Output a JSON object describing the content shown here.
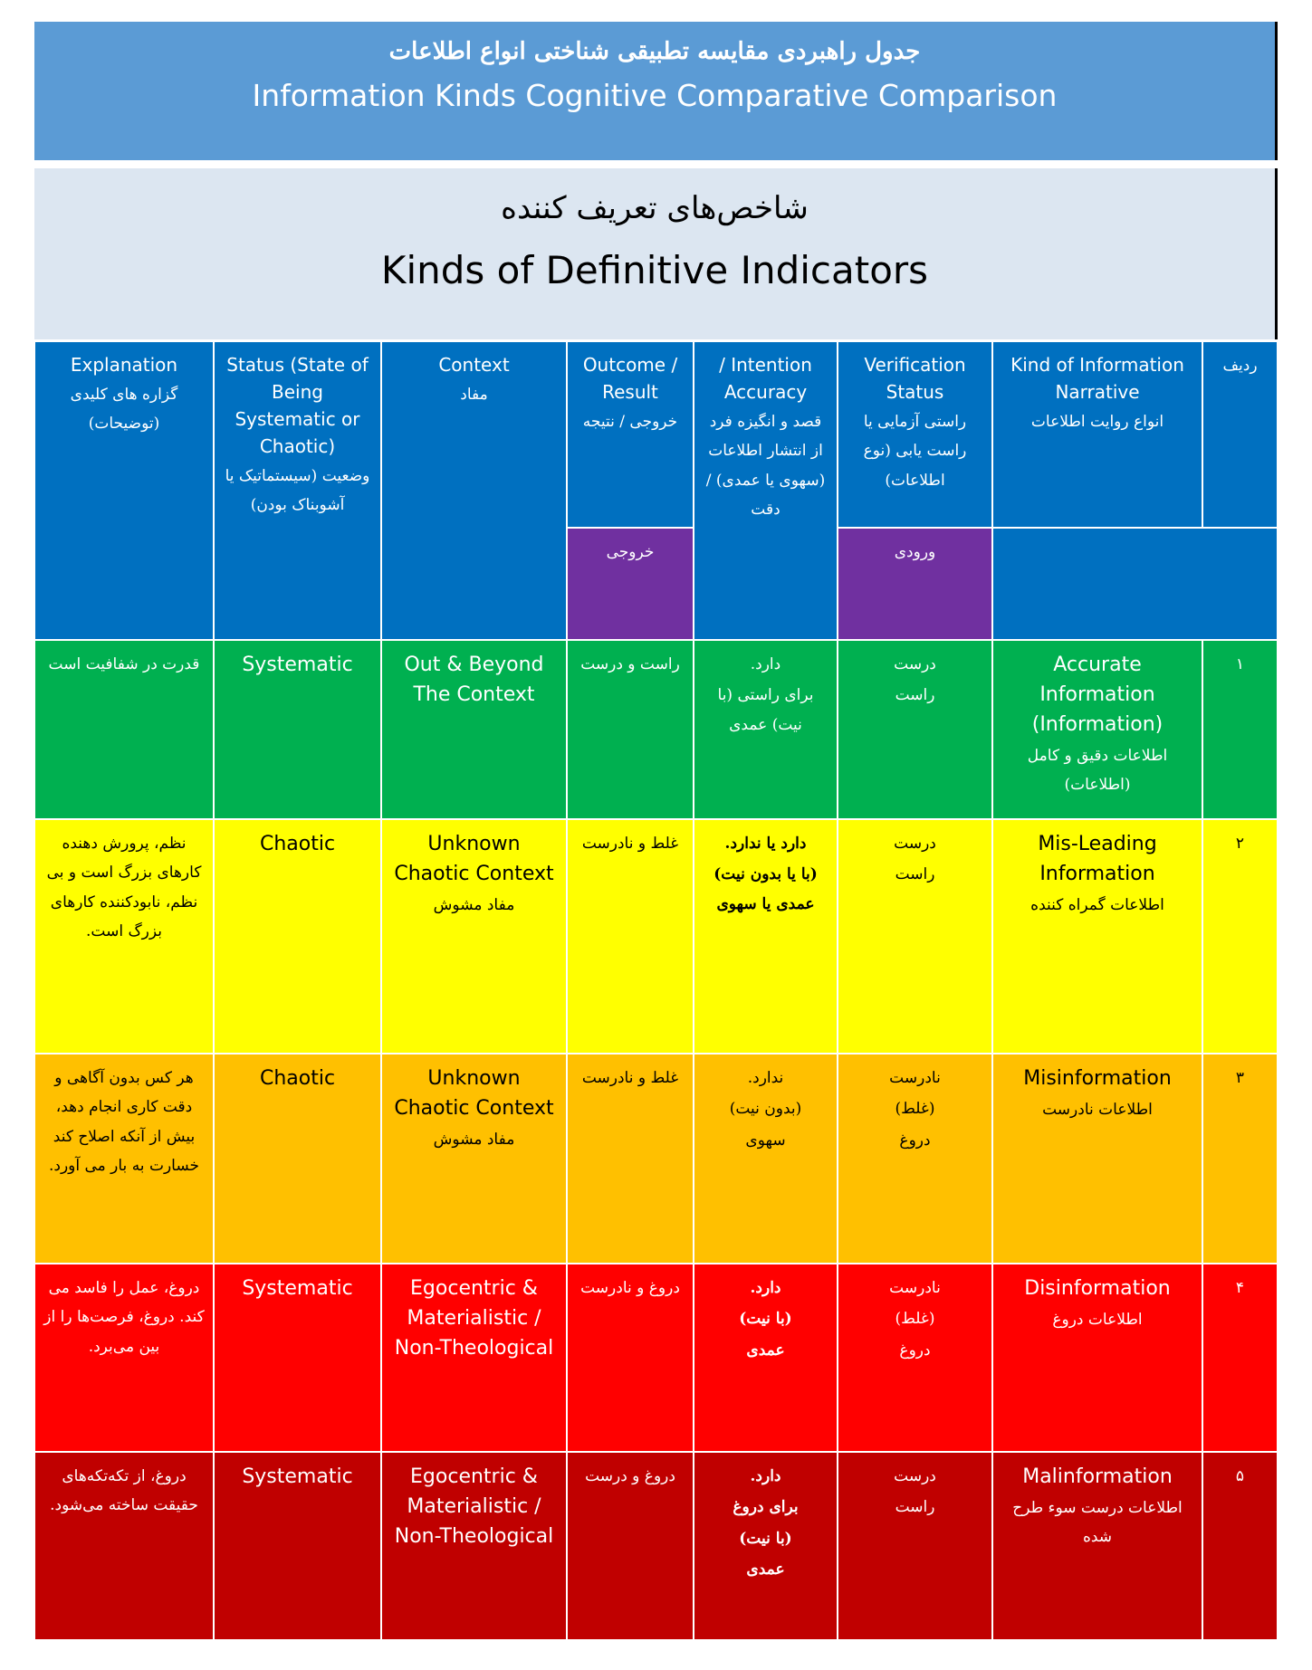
{
  "header": {
    "title_fa": "جدول راهبردی مقایسه تطبیقی شناختی انواع اطلاعات",
    "title_en": "Information Kinds Cognitive Comparative Comparison"
  },
  "section": {
    "title_fa": "شاخص‌های تعریف کننده",
    "title_en": "Kinds of Definitive Indicators"
  },
  "table": {
    "columns": [
      [
        "ردیف"
      ],
      [
        "Kind of Information Narrative",
        "انواع روایت اطلاعات"
      ],
      [
        "Verification Status",
        "راستی آزمایی یا راست یابی (نوع اطلاعات)"
      ],
      [
        "/ Intention Accuracy",
        "قصد و انگیزه فرد از انتشار اطلاعات (سهوی یا عمدی) / دقت"
      ],
      [
        "Outcome / Result",
        "خروجی / نتیجه"
      ],
      [
        "Context",
        "مفاد"
      ],
      [
        "Status (State of Being Systematic or Chaotic)",
        "وضعیت (سیستماتیک یا آشوبناک بودن)"
      ],
      [
        "Explanation",
        "گزاره های کلیدی (توضیحات)"
      ]
    ],
    "subheader": {
      "verification": "ورودی",
      "outcome": "خروجی"
    },
    "rows": [
      {
        "color": "#00b050",
        "text_color": "#ffffff",
        "emphasis": false,
        "cells": [
          [
            "۱"
          ],
          [
            "Accurate Information (Information)",
            "اطلاعات دقیق و کامل (اطلاعات)"
          ],
          [
            "درست",
            "راست"
          ],
          [
            "دارد.",
            "برای راستی (با نیت) عمدی"
          ],
          [
            "راست و درست"
          ],
          [
            "Out & Beyond The Context"
          ],
          [
            "Systematic"
          ],
          [
            "قدرت در شفافیت است"
          ]
        ]
      },
      {
        "color": "#ffff00",
        "text_color": "#000000",
        "emphasis": true,
        "cells": [
          [
            "۲"
          ],
          [
            "Mis-Leading Information",
            "اطلاعات گمراه کننده"
          ],
          [
            "درست",
            "راست"
          ],
          [
            "دارد یا ندارد.",
            "(با یا بدون نیت) عمدی یا سهوی"
          ],
          [
            "غلط و نادرست"
          ],
          [
            "Unknown Chaotic Context",
            "مفاد مشوش"
          ],
          [
            "Chaotic"
          ],
          [
            "نظم، پرورش دهنده کارهای بزرگ است و بی نظم، نابودکننده کارهای بزرگ است."
          ]
        ]
      },
      {
        "color": "#ffc000",
        "text_color": "#000000",
        "emphasis": false,
        "cells": [
          [
            "۳"
          ],
          [
            "Misinformation",
            "اطلاعات نادرست"
          ],
          [
            "نادرست",
            "(غلط)",
            "دروغ"
          ],
          [
            "ندارد.",
            "(بدون نیت)",
            "سهوی"
          ],
          [
            "غلط و نادرست"
          ],
          [
            "Unknown Chaotic Context",
            "مفاد مشوش"
          ],
          [
            "Chaotic"
          ],
          [
            "هر کس بدون آگاهی و دقت کاری انجام دهد، بیش از آنکه اصلاح کند خسارت به بار می آورد."
          ]
        ]
      },
      {
        "color": "#ff0000",
        "text_color": "#ffffff",
        "emphasis": true,
        "cells": [
          [
            "۴"
          ],
          [
            "Disinformation",
            "اطلاعات دروغ"
          ],
          [
            "نادرست",
            "(غلط)",
            "دروغ"
          ],
          [
            "دارد.",
            "(با نیت)",
            "عمدی"
          ],
          [
            "دروغ و نادرست"
          ],
          [
            "Egocentric & Materialistic / Non-Theological"
          ],
          [
            "Systematic"
          ],
          [
            "دروغ، عمل را فاسد می کند. دروغ، فرصت‌ها را از بین می‌برد."
          ]
        ]
      },
      {
        "color": "#c00000",
        "text_color": "#ffffff",
        "emphasis": true,
        "cells": [
          [
            "۵"
          ],
          [
            "Malinformation",
            "اطلاعات درست سوء طرح شده"
          ],
          [
            "درست",
            "راست"
          ],
          [
            "دارد.",
            "برای دروغ",
            "(با نیت)",
            "عمدی"
          ],
          [
            "دروغ و درست"
          ],
          [
            "Egocentric & Materialistic / Non-Theological"
          ],
          [
            "Systematic"
          ],
          [
            "دروغ، از تکه‌تکه‌های حقیقت ساخته می‌شود."
          ]
        ]
      }
    ]
  }
}
